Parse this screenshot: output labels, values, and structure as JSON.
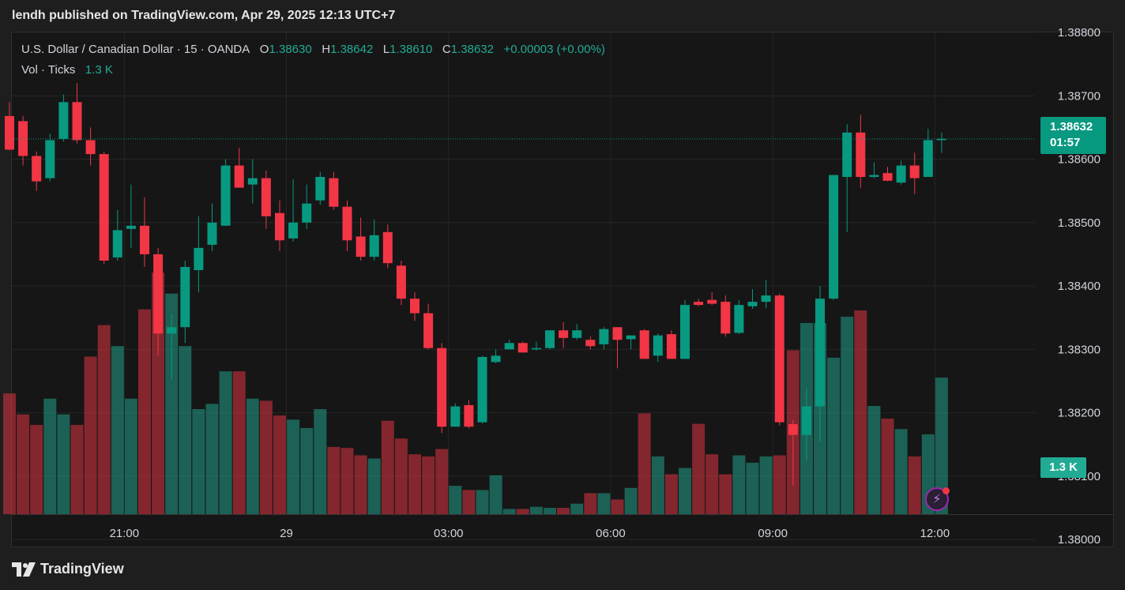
{
  "header": {
    "publish_text": "lendh published on TradingView.com, Apr 29, 2025 12:13 UTC+7"
  },
  "legend": {
    "symbol": "U.S. Dollar / Canadian Dollar · 15 · OANDA",
    "o_label": "O",
    "o_value": "1.38630",
    "h_label": "H",
    "h_value": "1.38642",
    "l_label": "L",
    "l_value": "1.38610",
    "c_label": "C",
    "c_value": "1.38632",
    "change": "+0.00003 (+0.00%)",
    "vol_label": "Vol · Ticks",
    "vol_value": "1.3 K"
  },
  "price_tag": {
    "price": "1.38632",
    "countdown": "01:57"
  },
  "volume_tag": {
    "label": "1.3 K"
  },
  "footer": {
    "brand": "TradingView"
  },
  "colors": {
    "up": "#089981",
    "down": "#f23645",
    "up_vol": "#22ab94",
    "down_vol": "#f23645",
    "grid": "#262626",
    "axis_text": "#d1d4dc"
  },
  "chart_data": {
    "type": "candlestick",
    "ylim": [
      1.3804,
      1.388
    ],
    "yticks": [
      "1.38800",
      "1.38700",
      "1.38600",
      "1.38500",
      "1.38400",
      "1.38300",
      "1.38200",
      "1.38100",
      "1.38000"
    ],
    "xticks": [
      {
        "label": "21:00",
        "index": 8.5
      },
      {
        "label": "29",
        "index": 20.5
      },
      {
        "label": "03:00",
        "index": 32.5
      },
      {
        "label": "06:00",
        "index": 44.5
      },
      {
        "label": "09:00",
        "index": 56.5
      },
      {
        "label": "12:00",
        "index": 68.5
      }
    ],
    "candles": [
      [
        1.38668,
        1.3869,
        1.38614,
        1.38615
      ],
      [
        1.3866,
        1.38668,
        1.3859,
        1.38605
      ],
      [
        1.38605,
        1.38612,
        1.3855,
        1.38565
      ],
      [
        1.3857,
        1.3864,
        1.38565,
        1.3863
      ],
      [
        1.38632,
        1.38702,
        1.38628,
        1.3869
      ],
      [
        1.3869,
        1.3872,
        1.38625,
        1.3863
      ],
      [
        1.3863,
        1.3865,
        1.3859,
        1.38608
      ],
      [
        1.38608,
        1.38612,
        1.38435,
        1.3844
      ],
      [
        1.38445,
        1.3852,
        1.3844,
        1.38488
      ],
      [
        1.3849,
        1.3856,
        1.3846,
        1.38495
      ],
      [
        1.38495,
        1.3854,
        1.3843,
        1.3845
      ],
      [
        1.3845,
        1.3846,
        1.3829,
        1.38325
      ],
      [
        1.38325,
        1.38355,
        1.38253,
        1.38335
      ],
      [
        1.38335,
        1.3844,
        1.3831,
        1.3843
      ],
      [
        1.38425,
        1.3851,
        1.3839,
        1.3846
      ],
      [
        1.38465,
        1.3853,
        1.38455,
        1.385
      ],
      [
        1.38495,
        1.386,
        1.38495,
        1.3859
      ],
      [
        1.3859,
        1.38618,
        1.38555,
        1.38555
      ],
      [
        1.3856,
        1.386,
        1.3853,
        1.3857
      ],
      [
        1.3857,
        1.38582,
        1.3849,
        1.3851
      ],
      [
        1.38515,
        1.38535,
        1.38455,
        1.38472
      ],
      [
        1.38475,
        1.38568,
        1.3847,
        1.385
      ],
      [
        1.385,
        1.3856,
        1.3849,
        1.3853
      ],
      [
        1.38535,
        1.3858,
        1.38528,
        1.38572
      ],
      [
        1.3857,
        1.3858,
        1.3852,
        1.38525
      ],
      [
        1.38525,
        1.38535,
        1.38455,
        1.38472
      ],
      [
        1.38478,
        1.38508,
        1.3844,
        1.38446
      ],
      [
        1.38446,
        1.38505,
        1.3844,
        1.3848
      ],
      [
        1.38485,
        1.38497,
        1.38428,
        1.38436
      ],
      [
        1.38432,
        1.3844,
        1.3837,
        1.3838
      ],
      [
        1.3838,
        1.3839,
        1.38345,
        1.38357
      ],
      [
        1.38357,
        1.38372,
        1.383,
        1.38302
      ],
      [
        1.38302,
        1.3831,
        1.38168,
        1.38178
      ],
      [
        1.38178,
        1.38215,
        1.38178,
        1.3821
      ],
      [
        1.38212,
        1.3822,
        1.38175,
        1.38178
      ],
      [
        1.38185,
        1.3829,
        1.38183,
        1.38288
      ],
      [
        1.3828,
        1.383,
        1.38278,
        1.3829
      ],
      [
        1.383,
        1.38315,
        1.383,
        1.3831
      ],
      [
        1.3831,
        1.38312,
        1.38295,
        1.38295
      ],
      [
        1.383,
        1.38312,
        1.38298,
        1.38302
      ],
      [
        1.38302,
        1.3833,
        1.383,
        1.3833
      ],
      [
        1.3833,
        1.38343,
        1.38302,
        1.38318
      ],
      [
        1.38318,
        1.3834,
        1.38315,
        1.3833
      ],
      [
        1.38315,
        1.3832,
        1.383,
        1.38305
      ],
      [
        1.38308,
        1.38335,
        1.383,
        1.38332
      ],
      [
        1.38335,
        1.38335,
        1.3827,
        1.38315
      ],
      [
        1.38316,
        1.3832,
        1.383,
        1.38322
      ],
      [
        1.3833,
        1.38332,
        1.38285,
        1.38285
      ],
      [
        1.3829,
        1.38325,
        1.3828,
        1.38322
      ],
      [
        1.38324,
        1.3833,
        1.38285,
        1.38285
      ],
      [
        1.38285,
        1.38378,
        1.38285,
        1.3837
      ],
      [
        1.38375,
        1.3838,
        1.38368,
        1.3837
      ],
      [
        1.38378,
        1.3839,
        1.3837,
        1.38372
      ],
      [
        1.38375,
        1.38385,
        1.3832,
        1.38325
      ],
      [
        1.38326,
        1.38378,
        1.38324,
        1.3837
      ],
      [
        1.38368,
        1.38395,
        1.38364,
        1.38375
      ],
      [
        1.38375,
        1.3841,
        1.38365,
        1.38385
      ],
      [
        1.38385,
        1.38388,
        1.3818,
        1.38185
      ],
      [
        1.38182,
        1.38188,
        1.38085,
        1.38165
      ],
      [
        1.38165,
        1.38238,
        1.38125,
        1.3821
      ],
      [
        1.3821,
        1.384,
        1.38155,
        1.3838
      ],
      [
        1.3838,
        1.38575,
        1.38378,
        1.38575
      ],
      [
        1.38572,
        1.38655,
        1.38485,
        1.38642
      ],
      [
        1.38642,
        1.3867,
        1.38555,
        1.38572
      ],
      [
        1.38572,
        1.38595,
        1.3857,
        1.38575
      ],
      [
        1.38578,
        1.38588,
        1.38565,
        1.38566
      ],
      [
        1.38563,
        1.38598,
        1.3856,
        1.3859
      ],
      [
        1.3859,
        1.3861,
        1.38545,
        1.3857
      ],
      [
        1.38572,
        1.38648,
        1.38572,
        1.3863
      ],
      [
        1.3863,
        1.38642,
        1.3861,
        1.38632
      ]
    ],
    "volume": [
      1.15,
      0.95,
      0.85,
      1.1,
      0.95,
      0.85,
      1.5,
      1.8,
      1.6,
      1.1,
      1.95,
      2.3,
      2.1,
      1.6,
      1.0,
      1.05,
      1.36,
      1.36,
      1.1,
      1.08,
      0.94,
      0.9,
      0.82,
      1.0,
      0.64,
      0.63,
      0.56,
      0.53,
      0.89,
      0.72,
      0.57,
      0.55,
      0.62,
      0.27,
      0.23,
      0.23,
      0.37,
      0.05,
      0.05,
      0.07,
      0.06,
      0.06,
      0.1,
      0.2,
      0.2,
      0.14,
      0.25,
      0.96,
      0.55,
      0.38,
      0.44,
      0.86,
      0.57,
      0.38,
      0.56,
      0.49,
      0.55,
      0.56,
      1.56,
      1.82,
      1.82,
      1.49,
      1.88,
      1.94,
      1.03,
      0.91,
      0.81,
      0.55,
      0.76,
      1.3
    ]
  }
}
